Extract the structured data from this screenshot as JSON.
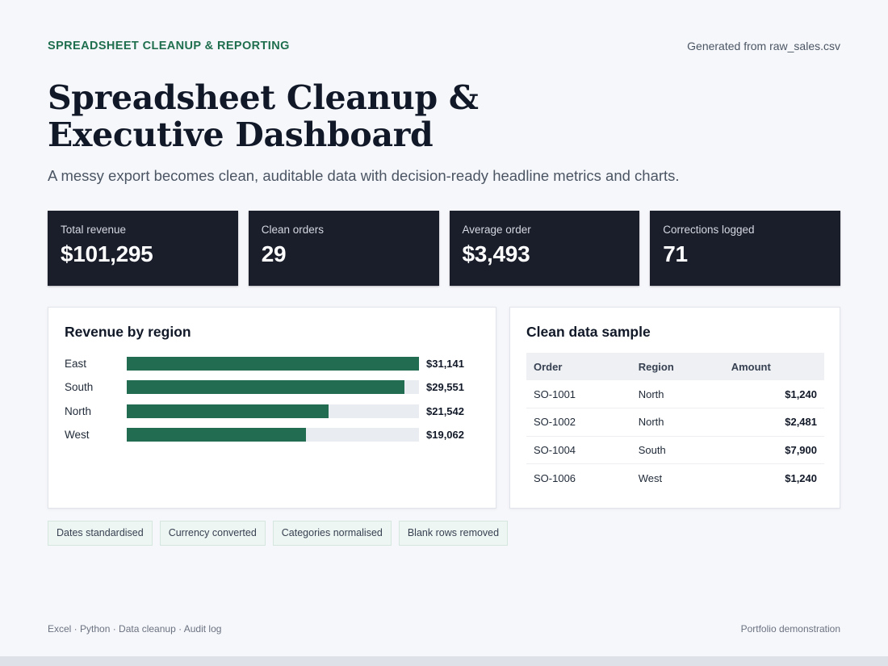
{
  "header": {
    "eyebrow": "SPREADSHEET CLEANUP & REPORTING",
    "source_note": "Generated from raw_sales.csv"
  },
  "hero": {
    "title_line1": "Spreadsheet Cleanup &",
    "title_line2": "Executive Dashboard",
    "subtitle": "A messy export becomes clean, auditable data with decision-ready headline metrics and charts."
  },
  "kpis": [
    {
      "label": "Total revenue",
      "value": "$101,295"
    },
    {
      "label": "Clean orders",
      "value": "29"
    },
    {
      "label": "Average order",
      "value": "$3,493"
    },
    {
      "label": "Corrections logged",
      "value": "71"
    }
  ],
  "region_card": {
    "title": "Revenue by region"
  },
  "chart_data": {
    "type": "bar",
    "orientation": "horizontal",
    "title": "Revenue by region",
    "categories": [
      "East",
      "South",
      "North",
      "West"
    ],
    "values": [
      31141,
      29551,
      21542,
      19062
    ],
    "value_labels": [
      "$31,141",
      "$29,551",
      "$21,542",
      "$19,062"
    ],
    "xlim": [
      0,
      31141
    ],
    "grid": false,
    "bar_color": "#226c52",
    "track_color": "#e9ecf0"
  },
  "sample_card": {
    "title": "Clean data sample",
    "columns": [
      "Order",
      "Region",
      "Amount"
    ],
    "rows": [
      {
        "order": "SO-1001",
        "region": "North",
        "amount": "$1,240"
      },
      {
        "order": "SO-1002",
        "region": "North",
        "amount": "$2,481"
      },
      {
        "order": "SO-1004",
        "region": "South",
        "amount": "$7,900"
      },
      {
        "order": "SO-1006",
        "region": "West",
        "amount": "$1,240"
      }
    ]
  },
  "tags": [
    "Dates standardised",
    "Currency converted",
    "Categories normalised",
    "Blank rows removed"
  ],
  "footer": {
    "left": "Excel · Python · Data cleanup · Audit log",
    "right": "Portfolio demonstration"
  },
  "colors": {
    "accent": "#1f6f4f",
    "kpi_background": "#1a1e2b",
    "page_background": "#f6f7fb"
  }
}
